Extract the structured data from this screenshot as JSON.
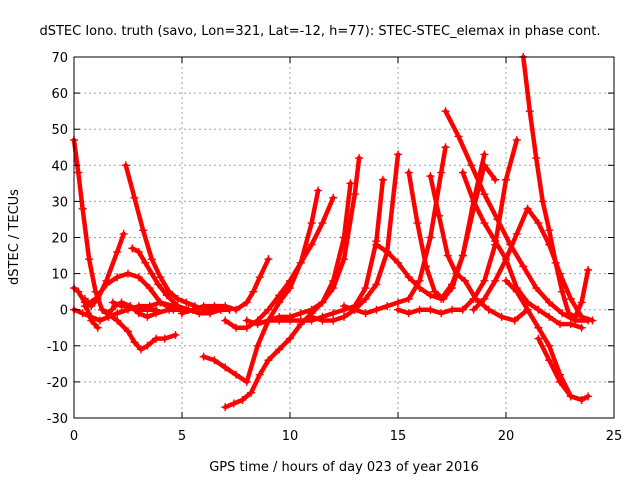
{
  "chart_data": {
    "type": "scatter",
    "title": "dSTEC Iono. truth (savo, Lon=321, Lat=-12, h=77): STEC-STEC_elemax in phase cont.",
    "xlabel": "GPS time / hours of day 023 of year 2016",
    "ylabel": "dSTEC  / TECUs",
    "xlim": [
      0,
      25
    ],
    "ylim": [
      -30,
      70
    ],
    "xticks": [
      0,
      5,
      10,
      15,
      20,
      25
    ],
    "yticks": [
      -30,
      -20,
      -10,
      0,
      10,
      20,
      30,
      40,
      50,
      60,
      70
    ],
    "grid": true,
    "marker": "+",
    "color": "#ff0000",
    "series": [
      {
        "x": [
          0.0,
          0.2,
          0.4,
          0.7,
          1.0,
          1.3,
          1.6,
          1.9,
          2.2,
          2.6,
          3.0,
          3.4,
          3.8
        ],
        "y": [
          47,
          38,
          28,
          14,
          5,
          0,
          -1,
          1,
          2,
          1,
          0,
          0,
          0
        ]
      },
      {
        "x": [
          0.0,
          0.2,
          0.5,
          0.8,
          1.1
        ],
        "y": [
          6,
          5,
          2,
          -3,
          -5
        ]
      },
      {
        "x": [
          0.0,
          0.4,
          0.8,
          1.2,
          1.6,
          2.0,
          2.5,
          3.0,
          3.5,
          4.0,
          4.6
        ],
        "y": [
          0,
          -1,
          -2,
          -3,
          -2,
          -1,
          0,
          1,
          1,
          2,
          1
        ]
      },
      {
        "x": [
          0.5,
          0.8,
          1.1,
          1.5,
          2.0,
          2.3
        ],
        "y": [
          3,
          1,
          3,
          8,
          16,
          21
        ]
      },
      {
        "x": [
          0.5,
          1.0,
          1.5,
          2.0,
          2.5,
          3.0,
          3.5,
          4.0,
          4.6
        ],
        "y": [
          1,
          3,
          7,
          9,
          10,
          9,
          6,
          2,
          0
        ]
      },
      {
        "x": [
          2.4,
          2.8,
          3.2,
          3.6,
          4.0,
          4.4,
          4.8,
          5.2,
          5.6,
          6.0,
          6.4,
          6.8,
          7.2
        ],
        "y": [
          40,
          31,
          22,
          14,
          9,
          5,
          3,
          2,
          1,
          0,
          0,
          0,
          0
        ]
      },
      {
        "x": [
          2.7,
          3.0,
          3.3,
          3.6,
          3.9,
          4.3,
          4.8,
          5.3,
          5.8,
          6.3,
          6.8,
          7.2
        ],
        "y": [
          17,
          16,
          13,
          10,
          7,
          4,
          1,
          0,
          -1,
          -1,
          0,
          0
        ]
      },
      {
        "x": [
          1.5,
          2.0,
          2.5,
          2.8,
          3.1,
          3.4,
          3.8,
          4.2,
          4.7
        ],
        "y": [
          -1,
          -3,
          -6,
          -9,
          -11,
          -10,
          -8,
          -8,
          -7
        ]
      },
      {
        "x": [
          1.8,
          2.2,
          2.6,
          3.0,
          3.4,
          3.8,
          4.4,
          5.0
        ],
        "y": [
          2,
          1,
          1,
          -1,
          -2,
          -1,
          0,
          0
        ]
      },
      {
        "x": [
          5.0,
          5.5,
          6.0,
          6.5,
          7.0,
          7.5,
          8.0,
          8.3,
          8.6,
          9.0
        ],
        "y": [
          -1,
          0,
          1,
          1,
          1,
          0,
          2,
          5,
          9,
          14
        ]
      },
      {
        "x": [
          6.0,
          6.5,
          7.0,
          7.5,
          8.0,
          8.5,
          9.0,
          9.5,
          10.0,
          10.5,
          11.0,
          11.3
        ],
        "y": [
          -13,
          -14,
          -16,
          -18,
          -20,
          -10,
          -3,
          2,
          6,
          13,
          24,
          33
        ]
      },
      {
        "x": [
          7.0,
          7.4,
          7.8,
          8.2,
          8.6,
          9.0,
          9.5,
          10.0,
          10.5,
          11.0,
          11.5,
          12.0,
          12.5,
          12.8
        ],
        "y": [
          -27,
          -26,
          -25,
          -23,
          -18,
          -14,
          -11,
          -8,
          -4,
          -1,
          2,
          8,
          20,
          35
        ]
      },
      {
        "x": [
          7.0,
          7.5,
          8.0,
          8.5,
          9.0,
          9.5,
          10.0,
          10.5,
          11.0,
          11.5,
          12.0
        ],
        "y": [
          -3,
          -5,
          -5,
          -3,
          0,
          4,
          8,
          13,
          18,
          24,
          31
        ]
      },
      {
        "x": [
          8.0,
          8.5,
          9.0,
          9.5,
          10.0,
          10.5,
          11.0,
          11.5,
          12.0,
          12.5,
          13.0,
          13.2
        ],
        "y": [
          -3,
          -4,
          -3,
          -2,
          -2,
          -1,
          0,
          2,
          6,
          14,
          32,
          42
        ]
      },
      {
        "x": [
          9.0,
          9.5,
          10.0,
          10.5,
          11.0,
          11.5,
          12.0,
          12.5,
          13.0,
          13.5,
          14.0,
          14.3
        ],
        "y": [
          -3,
          -3,
          -3,
          -3,
          -3,
          -2,
          -1,
          0,
          1,
          6,
          19,
          36
        ]
      },
      {
        "x": [
          11.0,
          11.5,
          12.0,
          12.5,
          13.0,
          13.5,
          14.0,
          14.5,
          15.0
        ],
        "y": [
          -2,
          -3,
          -3,
          -2,
          0,
          3,
          7,
          16,
          43
        ]
      },
      {
        "x": [
          12.5,
          13.0,
          13.5,
          14.0,
          14.5,
          15.0,
          15.5,
          16.0,
          16.5,
          17.0,
          17.2
        ],
        "y": [
          1,
          0,
          -1,
          0,
          1,
          2,
          3,
          8,
          20,
          38,
          45
        ]
      },
      {
        "x": [
          14.0,
          14.5,
          15.0,
          15.5,
          16.0,
          16.5,
          17.0,
          17.5,
          18.0,
          18.5,
          19.0
        ],
        "y": [
          18,
          16,
          13,
          9,
          6,
          4,
          3,
          7,
          15,
          30,
          43
        ]
      },
      {
        "x": [
          15.0,
          15.5,
          16.0,
          16.5,
          17.0,
          17.5,
          18.0,
          18.5,
          19.0,
          19.5,
          20.0,
          20.5
        ],
        "y": [
          0,
          -1,
          0,
          0,
          -1,
          0,
          0,
          3,
          8,
          18,
          36,
          47
        ]
      },
      {
        "x": [
          15.5,
          15.9,
          16.3,
          16.7,
          17.1,
          17.5,
          18.0,
          18.5,
          19.0,
          19.5
        ],
        "y": [
          38,
          24,
          12,
          5,
          3,
          6,
          15,
          28,
          40,
          36
        ]
      },
      {
        "x": [
          16.5,
          16.9,
          17.3,
          17.7,
          18.1,
          18.6,
          19.2,
          19.8,
          20.4,
          21.0
        ],
        "y": [
          37,
          26,
          15,
          10,
          8,
          3,
          0,
          -2,
          -3,
          0
        ]
      },
      {
        "x": [
          17.2,
          17.8,
          18.4,
          19.0,
          19.6,
          20.2,
          20.8,
          21.4,
          22.0,
          22.6,
          23.2,
          23.8
        ],
        "y": [
          55,
          48,
          40,
          32,
          25,
          18,
          12,
          6,
          2,
          -1,
          -3,
          -3
        ]
      },
      {
        "x": [
          18.0,
          18.5,
          19.0,
          19.5,
          20.0,
          20.5,
          21.0,
          21.5,
          22.0,
          22.5,
          23.0,
          23.5
        ],
        "y": [
          38,
          30,
          24,
          19,
          14,
          6,
          2,
          0,
          -2,
          -4,
          -4,
          -5
        ]
      },
      {
        "x": [
          18.5,
          19.0,
          19.5,
          20.0,
          20.5,
          21.0,
          21.5,
          22.0,
          22.5,
          23.0,
          23.5,
          24.0
        ],
        "y": [
          0,
          3,
          8,
          14,
          21,
          28,
          24,
          18,
          10,
          3,
          -2,
          -3
        ]
      },
      {
        "x": [
          20.0,
          20.5,
          21.0,
          21.5,
          22.0,
          22.5,
          23.0,
          23.5
        ],
        "y": [
          8,
          5,
          0,
          -5,
          -10,
          -18,
          -24,
          -25
        ]
      },
      {
        "x": [
          20.8,
          21.1,
          21.4,
          21.7,
          22.0,
          22.3,
          22.6,
          22.9,
          23.2,
          23.5,
          23.8
        ],
        "y": [
          70,
          55,
          42,
          30,
          22,
          13,
          5,
          -1,
          -2,
          2,
          11
        ]
      },
      {
        "x": [
          21.5,
          22.0,
          22.5,
          23.0,
          23.5,
          23.8
        ],
        "y": [
          -8,
          -14,
          -20,
          -24,
          -25,
          -24
        ]
      }
    ]
  }
}
